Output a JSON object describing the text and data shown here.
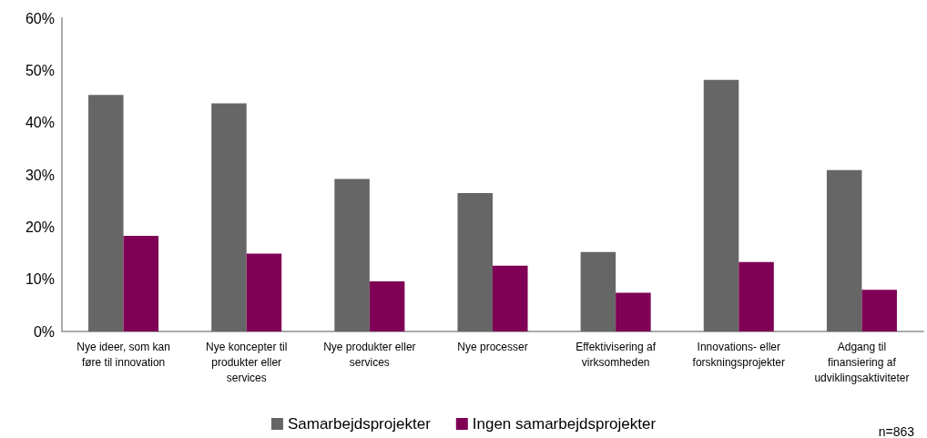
{
  "chart_data": {
    "type": "bar",
    "categories": [
      "Nye ideer, som kan\nføre til innovation",
      "Nye koncepter til\nprodukter eller\nservices",
      "Nye produkter eller\nservices",
      "Nye processer",
      "Effektivisering af\nvirksomheden",
      "Innovations- eller\nforskningsprojekter",
      "Adgang til\nfinansiering af\nudviklingsaktiviteter"
    ],
    "series": [
      {
        "name": "Samarbejdsprojekter",
        "color": "#666666",
        "values": [
          45.3,
          43.7,
          29.2,
          26.5,
          15.2,
          48.2,
          30.9
        ]
      },
      {
        "name": "Ingen samarbejdsprojekter",
        "color": "#7f0055",
        "values": [
          18.3,
          14.9,
          9.6,
          12.6,
          7.4,
          13.3,
          8.0
        ]
      }
    ],
    "ylim": [
      0,
      60
    ],
    "yticks": [
      {
        "value": 0,
        "label": "0%"
      },
      {
        "value": 10,
        "label": "10%"
      },
      {
        "value": 20,
        "label": "20%"
      },
      {
        "value": 30,
        "label": "30%"
      },
      {
        "value": 40,
        "label": "40%"
      },
      {
        "value": 50,
        "label": "50%"
      },
      {
        "value": 60,
        "label": "60%"
      }
    ],
    "grid": false,
    "legend": "bottom",
    "annotations": [
      "n=863"
    ]
  }
}
